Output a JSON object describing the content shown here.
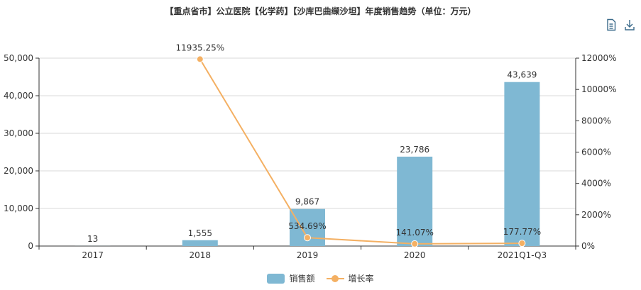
{
  "title": "【重点省市】公立医院【化学药】【沙库巴曲缬沙坦】年度销售趋势（单位：万元）",
  "toolbox": {
    "data_view_icon": "data-view-icon",
    "download_icon": "download-icon"
  },
  "colors": {
    "bar": "#7fb8d3",
    "line": "#f4b063",
    "axis": "#333333",
    "grid": "#d9d9d9"
  },
  "chart_data": {
    "type": "bar",
    "categories": [
      "2017",
      "2018",
      "2019",
      "2020",
      "2021Q1-Q3"
    ],
    "series": [
      {
        "name": "销售额",
        "type": "bar",
        "axis": "left",
        "values": [
          13,
          1555,
          9867,
          23786,
          43639
        ],
        "labels": [
          "13",
          "1,555",
          "9,867",
          "23,786",
          "43,639"
        ]
      },
      {
        "name": "增长率",
        "type": "line",
        "axis": "right",
        "values": [
          null,
          11935.25,
          534.69,
          141.07,
          177.77
        ],
        "labels": [
          "",
          "11935.25%",
          "534.69%",
          "141.07%",
          "177.77%"
        ]
      }
    ],
    "y_left": {
      "min": 0,
      "max": 50000,
      "ticks": [
        "0",
        "10,000",
        "20,000",
        "30,000",
        "40,000",
        "50,000"
      ]
    },
    "y_right": {
      "min": 0,
      "max": 12000,
      "ticks": [
        "0%",
        "2000%",
        "4000%",
        "6000%",
        "8000%",
        "10000%",
        "12000%"
      ]
    },
    "grid": true,
    "legend_position": "bottom-center"
  }
}
